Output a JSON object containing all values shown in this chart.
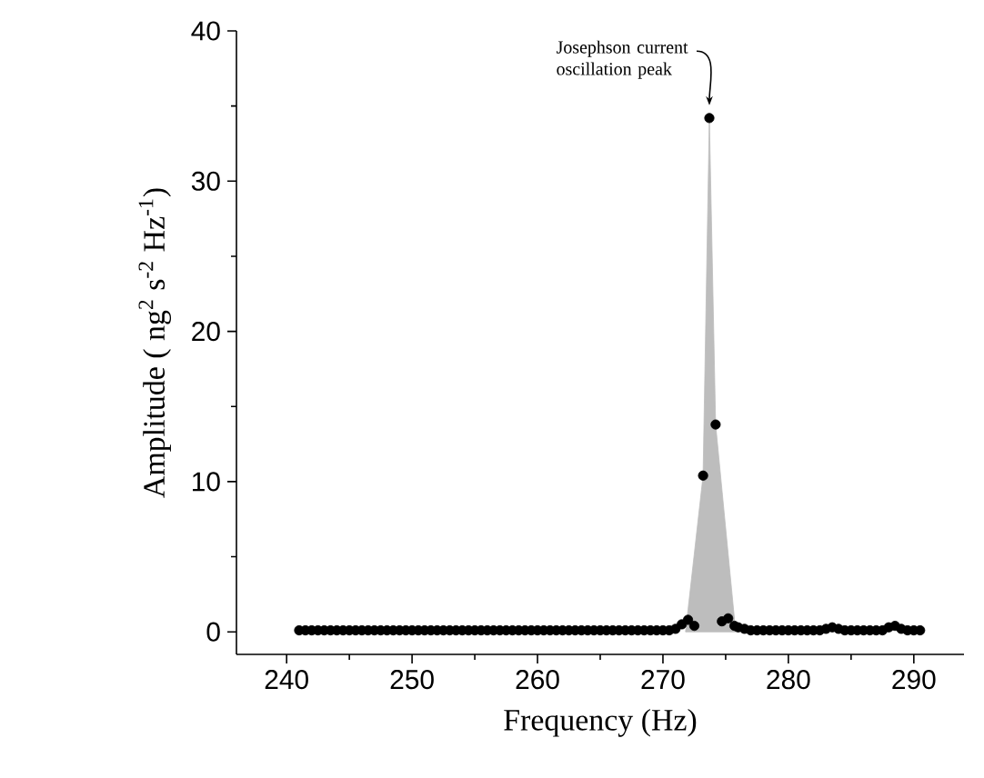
{
  "chart_data": {
    "type": "scatter",
    "xlabel": "Frequency (Hz)",
    "ylabel": "Amplitude ( ng$^{2}$ s$^{-2}$ Hz$^{-1}$)",
    "xlim": [
      236,
      294
    ],
    "ylim": [
      -1.5,
      40
    ],
    "xticks": [
      240,
      250,
      260,
      270,
      280,
      290
    ],
    "yticks": [
      0,
      10,
      20,
      30,
      40
    ],
    "grid": false,
    "annotations": [
      "Josephson current oscillation peak"
    ],
    "series": [
      {
        "type": "area",
        "color": "#bdbdbd",
        "x": [
          271.8,
          273.2,
          273.7,
          274.2,
          275.8
        ],
        "values": [
          0,
          10.4,
          34.2,
          13.8,
          0
        ]
      },
      {
        "marker": "circle",
        "color": "#000000",
        "x": [
          241,
          241.5,
          242,
          242.5,
          243,
          243.5,
          244,
          244.5,
          245,
          245.5,
          246,
          246.5,
          247,
          247.5,
          248,
          248.5,
          249,
          249.5,
          250,
          250.5,
          251,
          251.5,
          252,
          252.5,
          253,
          253.5,
          254,
          254.5,
          255,
          255.5,
          256,
          256.5,
          257,
          257.5,
          258,
          258.5,
          259,
          259.5,
          260,
          260.5,
          261,
          261.5,
          262,
          262.5,
          263,
          263.5,
          264,
          264.5,
          265,
          265.5,
          266,
          266.5,
          267,
          267.5,
          268,
          268.5,
          269,
          269.5,
          270,
          270.5,
          271,
          271.5,
          272,
          272.5,
          273.2,
          273.7,
          274.2,
          274.7,
          275.2,
          275.7,
          276,
          276.5,
          277,
          277.5,
          278,
          278.5,
          279,
          279.5,
          280,
          280.5,
          281,
          281.5,
          282,
          282.5,
          283,
          283.5,
          284,
          284.5,
          285,
          285.5,
          286,
          286.5,
          287,
          287.5,
          288,
          288.5,
          289,
          289.5,
          290,
          290.5
        ],
        "values": [
          0.1,
          0.1,
          0.1,
          0.1,
          0.1,
          0.1,
          0.1,
          0.1,
          0.1,
          0.1,
          0.1,
          0.1,
          0.1,
          0.1,
          0.1,
          0.1,
          0.1,
          0.1,
          0.1,
          0.1,
          0.1,
          0.1,
          0.1,
          0.1,
          0.1,
          0.1,
          0.1,
          0.1,
          0.1,
          0.1,
          0.1,
          0.1,
          0.1,
          0.1,
          0.1,
          0.1,
          0.1,
          0.1,
          0.1,
          0.1,
          0.1,
          0.1,
          0.1,
          0.1,
          0.1,
          0.1,
          0.1,
          0.1,
          0.1,
          0.1,
          0.1,
          0.1,
          0.1,
          0.1,
          0.1,
          0.1,
          0.1,
          0.1,
          0.1,
          0.1,
          0.2,
          0.5,
          0.8,
          0.4,
          10.4,
          34.2,
          13.8,
          0.7,
          0.9,
          0.4,
          0.3,
          0.2,
          0.1,
          0.1,
          0.1,
          0.1,
          0.1,
          0.1,
          0.1,
          0.1,
          0.1,
          0.1,
          0.1,
          0.1,
          0.2,
          0.3,
          0.2,
          0.1,
          0.1,
          0.1,
          0.1,
          0.1,
          0.1,
          0.1,
          0.3,
          0.4,
          0.2,
          0.1,
          0.1,
          0.1
        ]
      }
    ]
  }
}
